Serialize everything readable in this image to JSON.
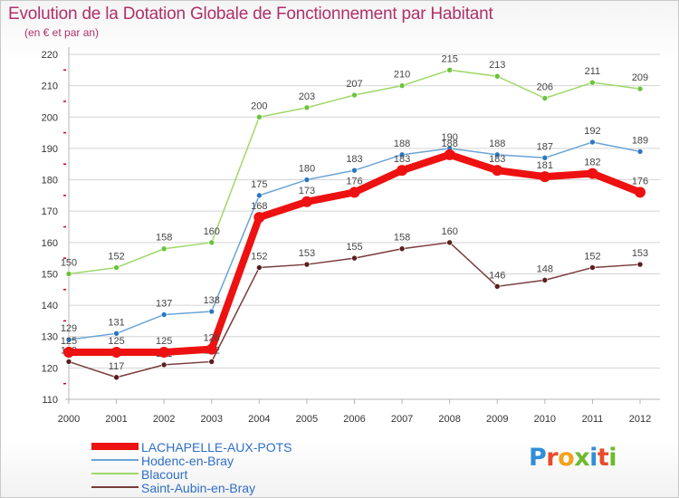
{
  "title": "Evolution de la Dotation Globale de Fonctionnement par Habitant",
  "subtitle": "(en € et par an)",
  "logo_text": "Proxiti",
  "colors": {
    "title": "#b0306a",
    "grid": "#d4d4d4",
    "axis": "#b5b5b5",
    "tick_text": "#333333",
    "legend_text": "#2f6fc7",
    "red_tick": "#c8001e"
  },
  "chart_data": {
    "type": "line",
    "title": "Evolution de la Dotation Globale de Fonctionnement par Habitant",
    "subtitle": "(en € et par an)",
    "xlabel": "",
    "ylabel": "",
    "x": [
      "2000",
      "2001",
      "2002",
      "2003",
      "2004",
      "2005",
      "2006",
      "2007",
      "2008",
      "2009",
      "2010",
      "2011",
      "2012"
    ],
    "ylim": [
      110,
      220
    ],
    "yticks": [
      110,
      120,
      130,
      140,
      150,
      160,
      170,
      180,
      190,
      200,
      210,
      220
    ],
    "grid": true,
    "legend_position": "bottom-left",
    "series": [
      {
        "name": "LACHAPELLE-AUX-POTS",
        "color": "#ee1111",
        "point_color": "#ee1111",
        "width": 8,
        "values": [
          125,
          125,
          125,
          126,
          168,
          173,
          176,
          183,
          188,
          183,
          181,
          182,
          176
        ]
      },
      {
        "name": "Hodenc-en-Bray",
        "color": "#6aa4d6",
        "point_color": "#2b78c2",
        "width": 1.5,
        "values": [
          129,
          131,
          137,
          138,
          175,
          180,
          183,
          188,
          190,
          188,
          187,
          192,
          189
        ]
      },
      {
        "name": "Blacourt",
        "color": "#9ed86a",
        "point_color": "#6cc33a",
        "width": 1.5,
        "values": [
          150,
          152,
          158,
          160,
          200,
          203,
          207,
          210,
          215,
          213,
          206,
          211,
          209
        ]
      },
      {
        "name": "Saint-Aubin-en-Bray",
        "color": "#7a3b3b",
        "point_color": "#5a1e1e",
        "width": 1.5,
        "values": [
          122,
          117,
          121,
          122,
          152,
          153,
          155,
          158,
          160,
          146,
          148,
          152,
          153
        ]
      }
    ],
    "draw_order": [
      2,
      1,
      3,
      0
    ]
  }
}
